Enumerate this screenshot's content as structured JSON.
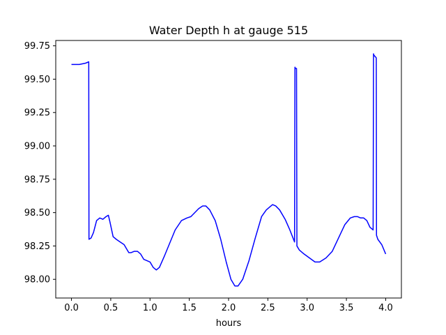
{
  "chart_data": {
    "type": "line",
    "title": "Water Depth h at gauge 515",
    "xlabel": "hours",
    "ylabel": "",
    "xlim": [
      -0.2,
      4.2
    ],
    "ylim": [
      97.86,
      99.79
    ],
    "x_ticks": [
      0.0,
      0.5,
      1.0,
      1.5,
      2.0,
      2.5,
      3.0,
      3.5,
      4.0
    ],
    "x_tick_labels": [
      "0.0",
      "0.5",
      "1.0",
      "1.5",
      "2.0",
      "2.5",
      "3.0",
      "3.5",
      "4.0"
    ],
    "y_ticks": [
      98.0,
      98.25,
      98.5,
      98.75,
      99.0,
      99.25,
      99.5,
      99.75
    ],
    "y_tick_labels": [
      "98.00",
      "98.25",
      "98.50",
      "98.75",
      "99.00",
      "99.25",
      "99.50",
      "99.75"
    ],
    "grid": false,
    "colors": {
      "line": "#0000ff",
      "axes": "#000000",
      "background": "#ffffff"
    },
    "series": [
      {
        "x": [
          0.0,
          0.1,
          0.18,
          0.22,
          0.223,
          0.25,
          0.28,
          0.32,
          0.36,
          0.4,
          0.42,
          0.44,
          0.47,
          0.49,
          0.53,
          0.57,
          0.62,
          0.67,
          0.7,
          0.73,
          0.76,
          0.8,
          0.84,
          0.88,
          0.92,
          0.96,
          1.0,
          1.04,
          1.08,
          1.12,
          1.18,
          1.25,
          1.32,
          1.4,
          1.47,
          1.52,
          1.57,
          1.62,
          1.67,
          1.71,
          1.76,
          1.83,
          1.9,
          1.97,
          2.03,
          2.08,
          2.12,
          2.18,
          2.26,
          2.34,
          2.42,
          2.48,
          2.52,
          2.56,
          2.6,
          2.65,
          2.72,
          2.78,
          2.84,
          2.845,
          2.85,
          2.865,
          2.87,
          2.9,
          2.96,
          3.03,
          3.1,
          3.16,
          3.24,
          3.32,
          3.4,
          3.48,
          3.55,
          3.6,
          3.64,
          3.68,
          3.72,
          3.76,
          3.8,
          3.84,
          3.845,
          3.85,
          3.88,
          3.883,
          3.9,
          3.95,
          4.0
        ],
        "y": [
          99.61,
          99.61,
          99.62,
          99.63,
          98.3,
          98.31,
          98.35,
          98.44,
          98.46,
          98.45,
          98.46,
          98.47,
          98.48,
          98.43,
          98.32,
          98.3,
          98.28,
          98.26,
          98.23,
          98.2,
          98.2,
          98.21,
          98.21,
          98.19,
          98.15,
          98.14,
          98.13,
          98.09,
          98.07,
          98.09,
          98.17,
          98.27,
          98.37,
          98.44,
          98.46,
          98.47,
          98.5,
          98.53,
          98.55,
          98.55,
          98.52,
          98.44,
          98.3,
          98.13,
          98.0,
          97.95,
          97.95,
          98.0,
          98.14,
          98.31,
          98.47,
          98.52,
          98.54,
          98.56,
          98.55,
          98.52,
          98.45,
          98.37,
          98.28,
          99.59,
          99.58,
          99.58,
          98.25,
          98.22,
          98.19,
          98.16,
          98.13,
          98.13,
          98.16,
          98.21,
          98.31,
          98.41,
          98.46,
          98.47,
          98.47,
          98.46,
          98.46,
          98.44,
          98.39,
          98.37,
          99.69,
          99.68,
          99.66,
          98.33,
          98.3,
          98.26,
          98.19
        ]
      }
    ]
  }
}
